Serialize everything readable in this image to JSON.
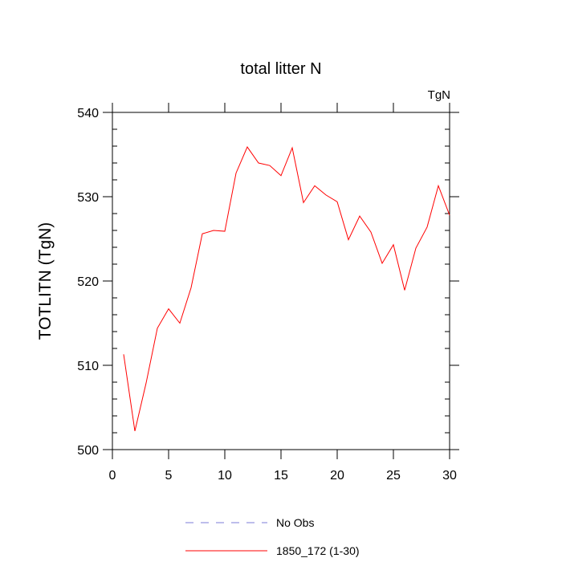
{
  "chart_data": {
    "type": "line",
    "title": "total litter N",
    "units_label": "TgN",
    "ylabel": "TOTLITN  (TgN)",
    "xlabel": "",
    "xlim": [
      0,
      30
    ],
    "ylim": [
      500,
      540
    ],
    "xticks": [
      0,
      5,
      10,
      15,
      20,
      25,
      30
    ],
    "yticks": [
      500,
      510,
      520,
      530,
      540
    ],
    "grid": false,
    "legend_position": "bottom-center",
    "legend": [
      {
        "label": "No Obs",
        "color": "#7b7bd9",
        "style": "dashed"
      },
      {
        "label": "1850_172 (1-30)",
        "color": "#ff0000",
        "style": "solid"
      }
    ],
    "series": [
      {
        "name": "1850_172 (1-30)",
        "color": "#ff0000",
        "x": [
          1,
          2,
          3,
          4,
          5,
          6,
          7,
          8,
          9,
          10,
          11,
          12,
          13,
          14,
          15,
          16,
          17,
          18,
          19,
          20,
          21,
          22,
          23,
          24,
          25,
          26,
          27,
          28,
          29,
          30
        ],
        "y": [
          511.3,
          502.2,
          507.9,
          514.4,
          516.7,
          515.0,
          519.2,
          525.6,
          526.0,
          525.9,
          532.8,
          535.9,
          534.0,
          533.7,
          532.5,
          535.8,
          529.3,
          531.3,
          530.2,
          529.4,
          524.9,
          527.7,
          525.8,
          522.1,
          524.3,
          518.9,
          523.9,
          526.4,
          531.3,
          527.8
        ]
      }
    ]
  }
}
